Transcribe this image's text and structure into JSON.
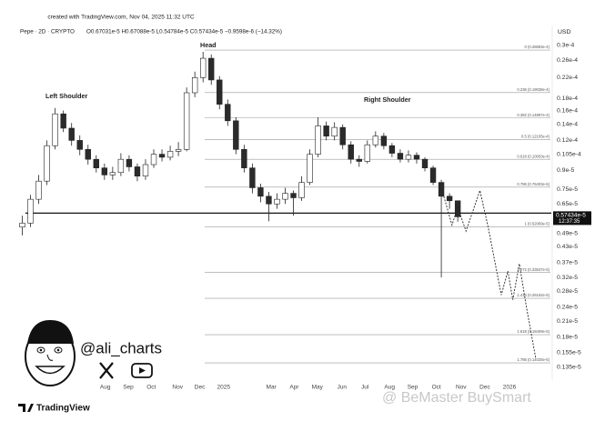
{
  "header": {
    "created": "created with TradingView.com, Nov 04, 2025 11:32 UTC",
    "symbol": "Pepe · 2D · CRYPTO",
    "ohlc": "O0.67031e-5 H0.67088e-5 L0.54784e-5 C0.57434e-5 −0.9598e-6 (−14.32%)"
  },
  "chart_data": {
    "type": "candlestick",
    "currency": "USD",
    "log_scale": true,
    "up_color": "#ffffff",
    "down_color": "#2b2b2b",
    "edge_color": "#222222",
    "ylim": [
      1.22e-06,
      3.42e-05
    ],
    "yticks": [
      {
        "value": 3e-05,
        "label": "0.3e-4"
      },
      {
        "value": 2.6e-05,
        "label": "0.26e-4"
      },
      {
        "value": 2.2e-05,
        "label": "0.22e-4"
      },
      {
        "value": 1.8e-05,
        "label": "0.18e-4"
      },
      {
        "value": 1.6e-05,
        "label": "0.16e-4"
      },
      {
        "value": 1.4e-05,
        "label": "0.14e-4"
      },
      {
        "value": 1.2e-05,
        "label": "0.12e-4"
      },
      {
        "value": 1.05e-05,
        "label": "0.105e-4"
      },
      {
        "value": 9e-06,
        "label": "0.9e-5"
      },
      {
        "value": 7.5e-06,
        "label": "0.75e-5"
      },
      {
        "value": 6.5e-06,
        "label": "0.65e-5"
      },
      {
        "value": 4.9e-06,
        "label": "0.49e-5"
      },
      {
        "value": 4.3e-06,
        "label": "0.43e-5"
      },
      {
        "value": 3.7e-06,
        "label": "0.37e-5"
      },
      {
        "value": 3.2e-06,
        "label": "0.32e-5"
      },
      {
        "value": 2.8e-06,
        "label": "0.28e-5"
      },
      {
        "value": 2.4e-06,
        "label": "0.24e-5"
      },
      {
        "value": 2.1e-06,
        "label": "0.21e-5"
      },
      {
        "value": 1.8e-06,
        "label": "0.18e-5"
      },
      {
        "value": 1.55e-06,
        "label": "0.155e-5"
      },
      {
        "value": 1.35e-06,
        "label": "0.135e-5"
      }
    ],
    "xlim": [
      0,
      65
    ],
    "xticks": [
      {
        "value": 10.6,
        "label": "Aug"
      },
      {
        "value": 13.4,
        "label": "Sep"
      },
      {
        "value": 16.2,
        "label": "Oct"
      },
      {
        "value": 19.4,
        "label": "Nov"
      },
      {
        "value": 22.1,
        "label": "Dec"
      },
      {
        "value": 25,
        "label": "2025"
      },
      {
        "value": 30.8,
        "label": "Mar"
      },
      {
        "value": 33.6,
        "label": "Apr"
      },
      {
        "value": 36.4,
        "label": "May"
      },
      {
        "value": 39.4,
        "label": "Jun"
      },
      {
        "value": 42.2,
        "label": "Jul"
      },
      {
        "value": 45.2,
        "label": "Aug"
      },
      {
        "value": 48,
        "label": "Sep"
      },
      {
        "value": 50.9,
        "label": "Oct"
      },
      {
        "value": 53.9,
        "label": "Nov"
      },
      {
        "value": 56.8,
        "label": "Dec"
      },
      {
        "value": 59.8,
        "label": "2026"
      }
    ],
    "candles": {
      "open": [
        5.2e-06,
        5.4e-06,
        6.8e-06,
        8.1e-06,
        1.14e-05,
        1.55e-05,
        1.35e-05,
        1.2e-05,
        1.1e-05,
        1e-05,
        9.2e-06,
        8.6e-06,
        8.8e-06,
        1e-05,
        9.3e-06,
        8.5e-06,
        9.5e-06,
        1.05e-05,
        1.02e-05,
        1.08e-05,
        1.1e-05,
        1.9e-05,
        2.2e-05,
        2.65e-05,
        2.15e-05,
        1.7e-05,
        1.45e-05,
        1.1e-05,
        9.2e-06,
        7.6e-06,
        7e-06,
        6.5e-06,
        6.8e-06,
        7.2e-06,
        6.9e-06,
        8e-06,
        1.05e-05,
        1.38e-05,
        1.25e-05,
        1.36e-05,
        1.15e-05,
        1e-05,
        9.8e-06,
        1.15e-05,
        1.25e-05,
        1.14e-05,
        1.06e-05,
        1e-05,
        1.04e-05,
        1e-05,
        9.2e-06,
        8e-06,
        7e-06,
        6.7031e-06
      ],
      "high": [
        5.8e-06,
        7.1e-06,
        8.6e-06,
        1.2e-05,
        1.64e-05,
        1.6e-05,
        1.42e-05,
        1.26e-05,
        1.15e-05,
        1.04e-05,
        9.6e-06,
        9.3e-06,
        1.06e-05,
        1.04e-05,
        9.6e-06,
        1e-05,
        1.1e-05,
        1.1e-05,
        1.14e-05,
        1.18e-05,
        2e-05,
        2.33e-05,
        2.82e-05,
        2.75e-05,
        2.23e-05,
        1.78e-05,
        1.5e-05,
        1.15e-05,
        9.6e-06,
        7.9e-06,
        7.3e-06,
        7.2e-06,
        7.6e-06,
        7.4e-06,
        8.5e-06,
        1.1e-05,
        1.5e-05,
        1.44e-05,
        1.43e-05,
        1.4e-05,
        1.19e-05,
        1.04e-05,
        1.2e-05,
        1.31e-05,
        1.29e-05,
        1.17e-05,
        1.1e-05,
        1.09e-05,
        1.07e-05,
        1.02e-05,
        9.4e-06,
        8.2e-06,
        7.2e-06,
        6.7088e-06
      ],
      "low": [
        4.8e-06,
        5.2e-06,
        6.5e-06,
        7.8e-06,
        1.1e-05,
        1.3e-05,
        1.14e-05,
        1.04e-05,
        9.5e-06,
        8.8e-06,
        8.2e-06,
        8.2e-06,
        8.5e-06,
        8.9e-06,
        8.1e-06,
        8.2e-06,
        9.2e-06,
        9.8e-06,
        9.9e-06,
        1.03e-05,
        1.08e-05,
        1.82e-05,
        2.1e-05,
        2.05e-05,
        1.62e-05,
        1.38e-05,
        1.05e-05,
        8.8e-06,
        7.2e-06,
        6.6e-06,
        5.5e-06,
        6.2e-06,
        6.5e-06,
        5.8e-06,
        6.7e-06,
        7.8e-06,
        1.02e-05,
        1.2e-05,
        1.2e-05,
        1.1e-05,
        9.6e-06,
        9.3e-06,
        9.6e-06,
        1.12e-05,
        1.1e-05,
        1.02e-05,
        9.7e-06,
        9.7e-06,
        9.6e-06,
        8.9e-06,
        7.8e-06,
        3.2e-06,
        6.2e-06,
        5.4784e-06
      ],
      "close": [
        5.4e-06,
        6.8e-06,
        8.1e-06,
        1.14e-05,
        1.55e-05,
        1.35e-05,
        1.2e-05,
        1.1e-05,
        1e-05,
        9.2e-06,
        8.6e-06,
        8.8e-06,
        1e-05,
        9.3e-06,
        8.5e-06,
        9.5e-06,
        1.05e-05,
        1.02e-05,
        1.08e-05,
        1.1e-05,
        1.9e-05,
        2.2e-05,
        2.65e-05,
        2.15e-05,
        1.7e-05,
        1.45e-05,
        1.1e-05,
        9.2e-06,
        7.6e-06,
        7e-06,
        6.5e-06,
        6.8e-06,
        7.2e-06,
        6.9e-06,
        8e-06,
        1.05e-05,
        1.38e-05,
        1.25e-05,
        1.36e-05,
        1.15e-05,
        1e-05,
        9.8e-06,
        1.15e-05,
        1.25e-05,
        1.14e-05,
        1.06e-05,
        1e-05,
        1.04e-05,
        1e-05,
        9.2e-06,
        8e-06,
        7e-06,
        6.7031e-06,
        5.7434e-06
      ]
    },
    "last_price_label": "0.57434e-5",
    "countdown": "12:37:35",
    "neckline": 5.95e-06,
    "fib_levels": [
      {
        "value": 2.8683e-05,
        "label": "0 (0.28683e-4)"
      },
      {
        "value": 1.9038e-05,
        "label": "0.236 (0.19038e-4)"
      },
      {
        "value": 1.4897e-05,
        "label": "0.382 (0.14897e-4)"
      },
      {
        "value": 1.2105e-05,
        "label": "0.5 (0.12105e-4)"
      },
      {
        "value": 1.0003e-05,
        "label": "0.618 (0.10003e-4)"
      },
      {
        "value": 7.6403e-06,
        "label": "0.786 (0.76403e-5)"
      },
      {
        "value": 5.2069e-06,
        "label": "1 (0.52069e-5)"
      },
      {
        "value": 3.3537e-06,
        "label": "1.272 (0.33537e-5)"
      },
      {
        "value": 2.6162e-06,
        "label": "1.414 (0.26162e-5)"
      },
      {
        "value": 1.8409e-06,
        "label": "1.618 (0.18409e-5)"
      },
      {
        "value": 1.4025e-06,
        "label": "1.786 (0.14025e-5)"
      }
    ],
    "projection": {
      "x": [
        51.7,
        52.8,
        53.5,
        54.5,
        56.2,
        57.2,
        58.8,
        59.6,
        60.2,
        61,
        61.8,
        63
      ],
      "y": [
        7.2e-06,
        5.3e-06,
        6.3e-06,
        5e-06,
        7.4e-06,
        5.2e-06,
        2.7e-06,
        3.4e-06,
        2.58e-06,
        3.65e-06,
        2.47e-06,
        1.46e-06
      ]
    },
    "annotations": [
      "Left Shoulder",
      "Head",
      "Right Shoulder"
    ]
  },
  "branding": {
    "handle": "@ali_charts",
    "logo": "TradingView",
    "watermark": "@ BeMaster BuySmart"
  }
}
